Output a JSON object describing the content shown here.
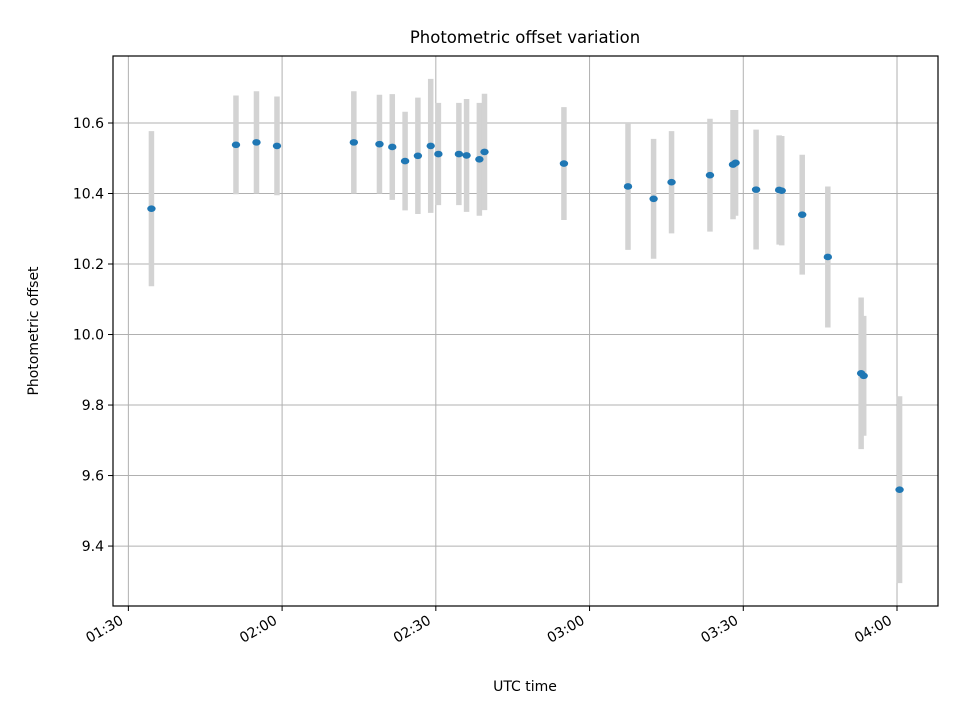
{
  "chart_data": {
    "type": "scatter",
    "title": "Photometric offset variation",
    "xlabel": "UTC time",
    "ylabel": "Photometric offset",
    "x_unit": "UTC time (hh:mm)",
    "xlim": [
      "01:27",
      "04:08"
    ],
    "ylim": [
      9.23,
      10.79
    ],
    "grid": true,
    "point_color": "#1f77b4",
    "errorbar_color": "#d3d3d3",
    "x_ticks": [
      "01:30",
      "02:00",
      "02:30",
      "03:00",
      "03:30",
      "04:00"
    ],
    "y_ticks": [
      "9.4",
      "9.6",
      "9.8",
      "10.0",
      "10.2",
      "10.4",
      "10.6"
    ],
    "points": [
      {
        "x": "01:34:30",
        "y": 10.357,
        "err": 0.22
      },
      {
        "x": "01:51:00",
        "y": 10.538,
        "err": 0.14
      },
      {
        "x": "01:55:00",
        "y": 10.545,
        "err": 0.145
      },
      {
        "x": "01:59:00",
        "y": 10.535,
        "err": 0.14
      },
      {
        "x": "02:14:00",
        "y": 10.545,
        "err": 0.145
      },
      {
        "x": "02:19:00",
        "y": 10.54,
        "err": 0.14
      },
      {
        "x": "02:21:30",
        "y": 10.532,
        "err": 0.15
      },
      {
        "x": "02:24:00",
        "y": 10.492,
        "err": 0.14
      },
      {
        "x": "02:26:30",
        "y": 10.507,
        "err": 0.165
      },
      {
        "x": "02:29:00",
        "y": 10.535,
        "err": 0.19
      },
      {
        "x": "02:30:30",
        "y": 10.512,
        "err": 0.145
      },
      {
        "x": "02:34:30",
        "y": 10.512,
        "err": 0.145
      },
      {
        "x": "02:36:00",
        "y": 10.508,
        "err": 0.16
      },
      {
        "x": "02:38:30",
        "y": 10.497,
        "err": 0.16
      },
      {
        "x": "02:39:30",
        "y": 10.518,
        "err": 0.165
      },
      {
        "x": "02:55:00",
        "y": 10.485,
        "err": 0.16
      },
      {
        "x": "03:07:30",
        "y": 10.42,
        "err": 0.18
      },
      {
        "x": "03:12:30",
        "y": 10.385,
        "err": 0.17
      },
      {
        "x": "03:16:00",
        "y": 10.432,
        "err": 0.145
      },
      {
        "x": "03:23:30",
        "y": 10.452,
        "err": 0.16
      },
      {
        "x": "03:28:00",
        "y": 10.482,
        "err": 0.155
      },
      {
        "x": "03:28:30",
        "y": 10.487,
        "err": 0.15
      },
      {
        "x": "03:32:30",
        "y": 10.411,
        "err": 0.17
      },
      {
        "x": "03:37:00",
        "y": 10.41,
        "err": 0.155
      },
      {
        "x": "03:37:30",
        "y": 10.408,
        "err": 0.155
      },
      {
        "x": "03:41:30",
        "y": 10.34,
        "err": 0.17
      },
      {
        "x": "03:46:30",
        "y": 10.22,
        "err": 0.2
      },
      {
        "x": "03:53:00",
        "y": 9.89,
        "err": 0.215
      },
      {
        "x": "03:53:30",
        "y": 9.883,
        "err": 0.17
      },
      {
        "x": "04:00:30",
        "y": 9.56,
        "err": 0.265
      }
    ]
  }
}
